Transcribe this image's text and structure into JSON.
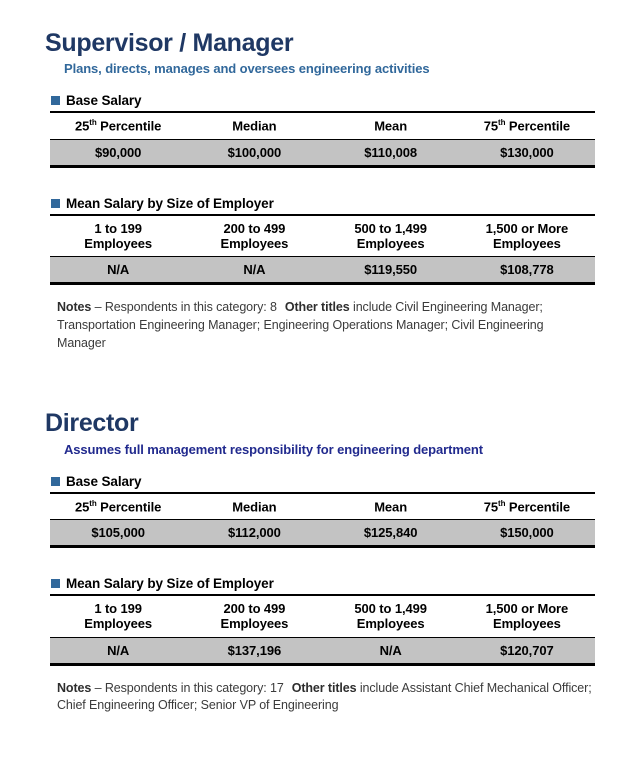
{
  "colors": {
    "title_navy": "#1F3864",
    "subtitle_steel_blue": "#31689B",
    "subtitle_dark_navy": "#212A8E",
    "bullet_square": "#31689B",
    "table_value_row_gray": "#C3C3C3",
    "table_border_black": "#000000",
    "notes_text_gray": "#3B3B3B"
  },
  "sections": [
    {
      "title": "Supervisor / Manager",
      "subtitle": "Plans, directs, manages and oversees engineering activities",
      "base_salary": {
        "heading": "Base Salary",
        "columns": [
          {
            "base": "25",
            "sup": "th",
            "rest": " Percentile"
          },
          {
            "base": "Median",
            "sup": "",
            "rest": ""
          },
          {
            "base": "Mean",
            "sup": "",
            "rest": ""
          },
          {
            "base": "75",
            "sup": "th",
            "rest": " Percentile"
          }
        ],
        "values": [
          "$90,000",
          "$100,000",
          "$110,008",
          "$130,000"
        ]
      },
      "mean_salary": {
        "heading": "Mean Salary by Size of Employer",
        "columns": [
          {
            "line1": "1 to 199",
            "line2": "Employees"
          },
          {
            "line1": "200 to 499",
            "line2": "Employees"
          },
          {
            "line1": "500 to 1,499",
            "line2": "Employees"
          },
          {
            "line1": "1,500 or More",
            "line2": "Employees"
          }
        ],
        "values": [
          "N/A",
          "N/A",
          "$119,550",
          "$108,778"
        ]
      },
      "notes": {
        "label": "Notes",
        "text1": " – Respondents in this category: 8",
        "label2": "Other titles",
        "text2": " include Civil Engineering Manager; Transportation Engineering Manager; Engineering Operations Manager; Civil Engineering Manager"
      }
    },
    {
      "title": "Director",
      "subtitle": "Assumes full management responsibility for engineering department",
      "base_salary": {
        "heading": "Base Salary",
        "columns": [
          {
            "base": "25",
            "sup": "th",
            "rest": " Percentile"
          },
          {
            "base": "Median",
            "sup": "",
            "rest": ""
          },
          {
            "base": "Mean",
            "sup": "",
            "rest": ""
          },
          {
            "base": "75",
            "sup": "th",
            "rest": " Percentile"
          }
        ],
        "values": [
          "$105,000",
          "$112,000",
          "$125,840",
          "$150,000"
        ]
      },
      "mean_salary": {
        "heading": "Mean Salary by Size of Employer",
        "columns": [
          {
            "line1": "1 to 199",
            "line2": "Employees"
          },
          {
            "line1": "200 to 499",
            "line2": "Employees"
          },
          {
            "line1": "500 to 1,499",
            "line2": "Employees"
          },
          {
            "line1": "1,500 or More",
            "line2": "Employees"
          }
        ],
        "values": [
          "N/A",
          "$137,196",
          "N/A",
          "$120,707"
        ]
      },
      "notes": {
        "label": "Notes",
        "text1": " – Respondents in this category: 17",
        "label2": "Other titles",
        "text2": " include Assistant Chief Mechanical Officer; Chief Engineering Officer; Senior VP of Engineering"
      }
    }
  ]
}
